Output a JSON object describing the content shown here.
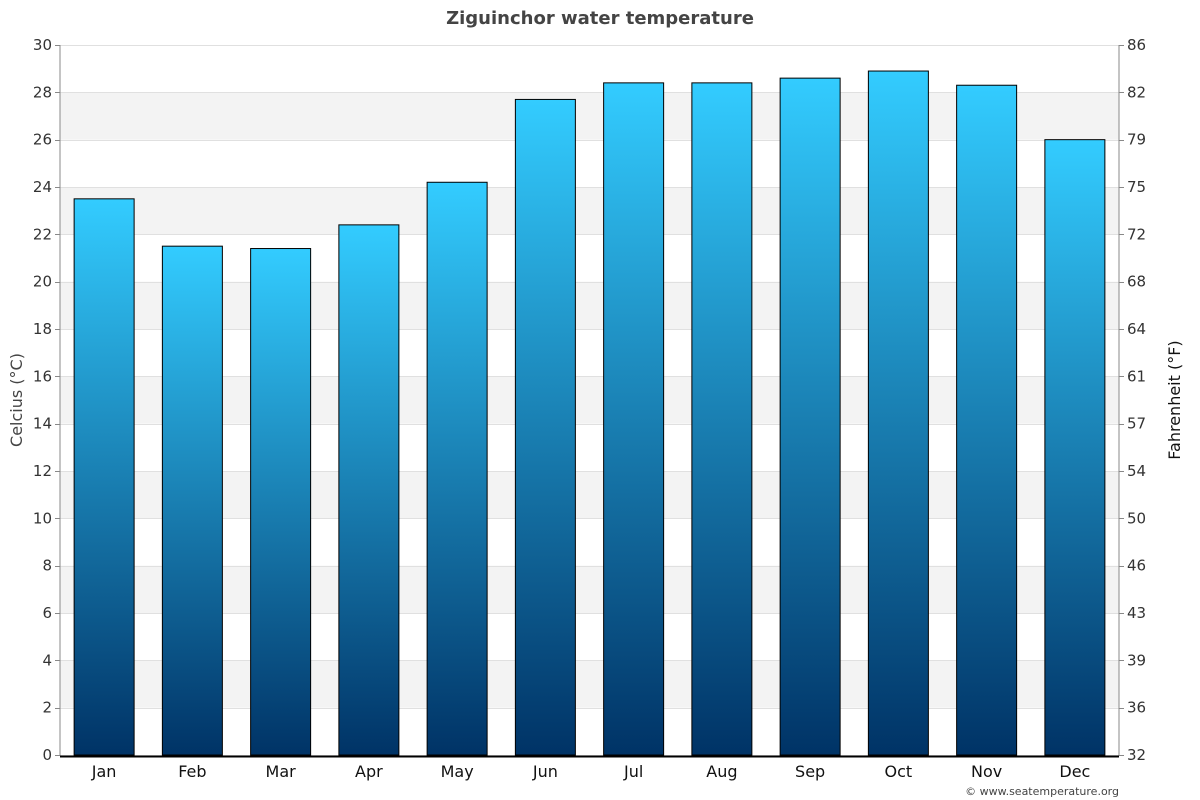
{
  "chart_data": {
    "type": "bar",
    "title": "Ziguinchor water temperature",
    "categories": [
      "Jan",
      "Feb",
      "Mar",
      "Apr",
      "May",
      "Jun",
      "Jul",
      "Aug",
      "Sep",
      "Oct",
      "Nov",
      "Dec"
    ],
    "values": [
      23.5,
      21.5,
      21.4,
      22.4,
      24.2,
      27.7,
      28.4,
      28.4,
      28.6,
      28.9,
      28.3,
      26.0
    ],
    "ylabel": "Celcius (°C)",
    "ylabel_right": "Fahrenheit (°F)",
    "ylim": [
      0,
      30
    ],
    "yticks": [
      0,
      2,
      4,
      6,
      8,
      10,
      12,
      14,
      16,
      18,
      20,
      22,
      24,
      26,
      28,
      30
    ],
    "yticks_right": [
      "32",
      "36",
      "39",
      "43",
      "46",
      "50",
      "54",
      "57",
      "61",
      "64",
      "68",
      "72",
      "75",
      "79",
      "82",
      "86"
    ],
    "grid": true,
    "colors": {
      "bar_top": "#33ccff",
      "bar_bottom": "#003366",
      "bar_border": "#000000",
      "band": "#f3f3f3",
      "gridline": "#e0e0e0"
    }
  },
  "credit": "© www.seatemperature.org"
}
